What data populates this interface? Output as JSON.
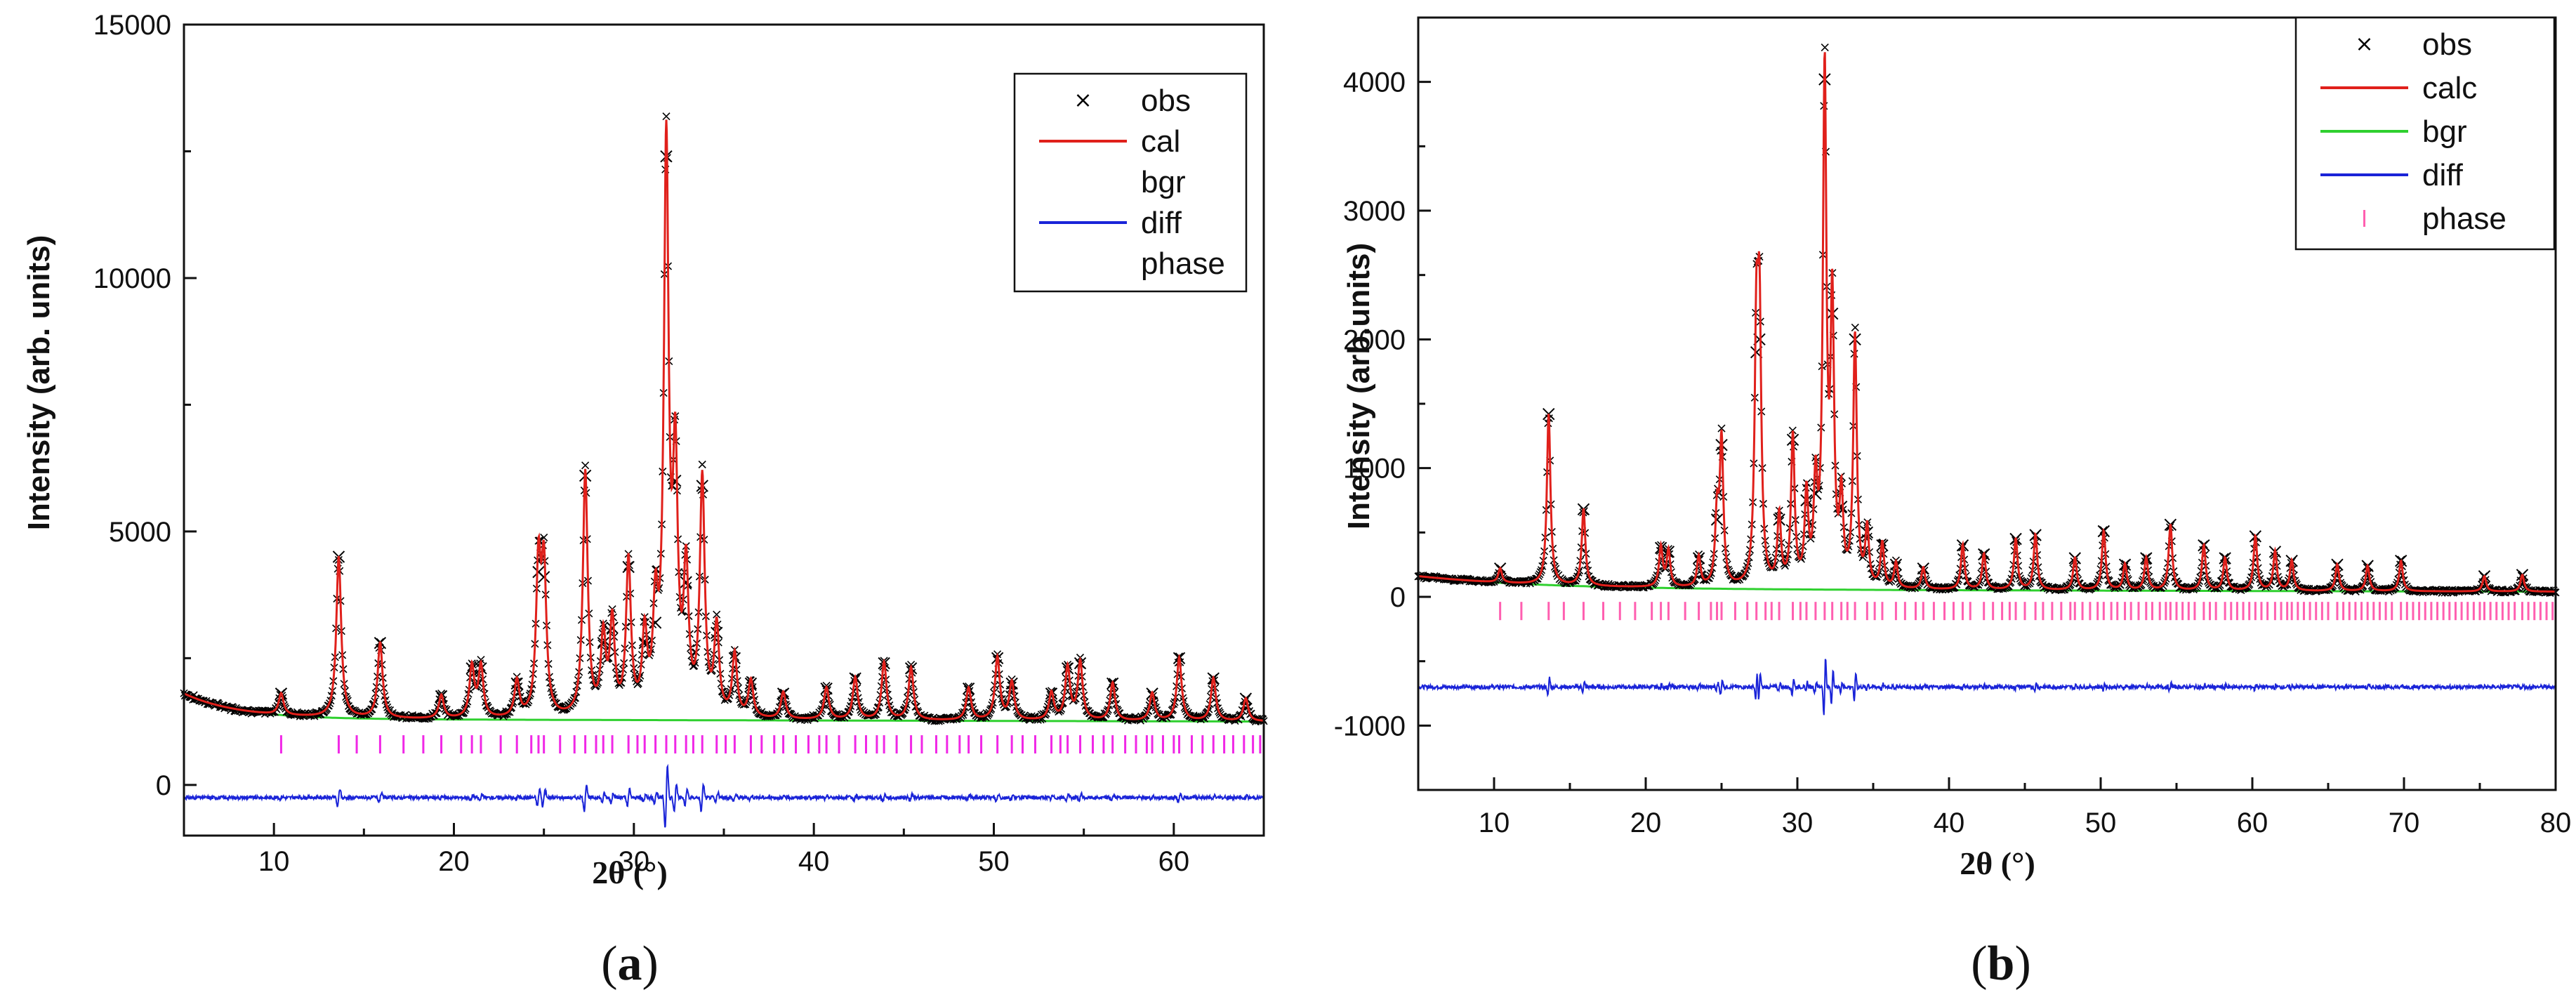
{
  "colors": {
    "obs": "#000000",
    "calc": "#e0201b",
    "bgr": "#2fd02f",
    "diff": "#1a24d8",
    "phase": "#f028e6",
    "phase_b": "#ff5fb0"
  },
  "chart_data": [
    {
      "type": "line",
      "panel_label": "a",
      "xlabel": "2θ (°)",
      "ylabel": "Intensity (arb. units)",
      "xlim": [
        5,
        65
      ],
      "ylim": [
        -1000,
        15000
      ],
      "xticks": [
        10,
        20,
        30,
        40,
        50,
        60
      ],
      "yticks": [
        0,
        5000,
        10000,
        15000
      ],
      "background": {
        "start": 1800,
        "end": 1250,
        "decay": 3.0,
        "floor": 1300
      },
      "peaks": [
        {
          "x": 10.4,
          "y": 1800
        },
        {
          "x": 13.6,
          "y": 4500
        },
        {
          "x": 15.9,
          "y": 2800
        },
        {
          "x": 19.3,
          "y": 1750
        },
        {
          "x": 21.0,
          "y": 2300
        },
        {
          "x": 21.5,
          "y": 2300
        },
        {
          "x": 23.5,
          "y": 2000
        },
        {
          "x": 24.7,
          "y": 4200
        },
        {
          "x": 25.0,
          "y": 4100
        },
        {
          "x": 27.3,
          "y": 6100
        },
        {
          "x": 28.3,
          "y": 2800
        },
        {
          "x": 28.8,
          "y": 3100
        },
        {
          "x": 29.7,
          "y": 4300
        },
        {
          "x": 30.6,
          "y": 2800
        },
        {
          "x": 31.2,
          "y": 3200
        },
        {
          "x": 31.8,
          "y": 12400
        },
        {
          "x": 32.3,
          "y": 6000
        },
        {
          "x": 32.9,
          "y": 4000
        },
        {
          "x": 33.8,
          "y": 5900
        },
        {
          "x": 34.6,
          "y": 3000
        },
        {
          "x": 35.6,
          "y": 2500
        },
        {
          "x": 36.5,
          "y": 2000
        },
        {
          "x": 38.3,
          "y": 1800
        },
        {
          "x": 40.7,
          "y": 1900
        },
        {
          "x": 42.3,
          "y": 2100
        },
        {
          "x": 43.9,
          "y": 2400
        },
        {
          "x": 45.4,
          "y": 2300
        },
        {
          "x": 48.6,
          "y": 1900
        },
        {
          "x": 50.2,
          "y": 2500
        },
        {
          "x": 51.0,
          "y": 2000
        },
        {
          "x": 53.2,
          "y": 1800
        },
        {
          "x": 54.1,
          "y": 2300
        },
        {
          "x": 54.8,
          "y": 2400
        },
        {
          "x": 56.6,
          "y": 2000
        },
        {
          "x": 58.8,
          "y": 1800
        },
        {
          "x": 60.3,
          "y": 2500
        },
        {
          "x": 62.2,
          "y": 2100
        },
        {
          "x": 64.0,
          "y": 1700
        }
      ],
      "peak_width": 0.16,
      "phase_y": 800,
      "phase_marks": [
        10.4,
        13.6,
        14.6,
        15.9,
        17.2,
        18.3,
        19.3,
        20.4,
        21.0,
        21.5,
        22.6,
        23.5,
        24.3,
        24.7,
        25.0,
        25.9,
        26.7,
        27.3,
        27.9,
        28.3,
        28.8,
        29.7,
        30.2,
        30.6,
        31.2,
        31.8,
        32.3,
        32.9,
        33.3,
        33.8,
        34.6,
        35.1,
        35.6,
        36.5,
        37.1,
        37.8,
        38.3,
        39.0,
        39.7,
        40.3,
        40.7,
        41.4,
        42.3,
        42.9,
        43.5,
        43.9,
        44.6,
        45.4,
        46.0,
        46.8,
        47.4,
        48.1,
        48.6,
        49.3,
        50.2,
        51.0,
        51.6,
        52.3,
        53.2,
        53.7,
        54.1,
        54.8,
        55.5,
        56.1,
        56.6,
        57.3,
        57.9,
        58.5,
        58.8,
        59.4,
        60.0,
        60.3,
        61.0,
        61.6,
        62.2,
        62.8,
        63.3,
        63.9,
        64.4,
        64.8
      ],
      "diff_offset": -250,
      "legend": {
        "position": "top-right",
        "entries": [
          {
            "label": "obs",
            "key": "obs",
            "style": "marker"
          },
          {
            "label": "cal",
            "key": "calc",
            "style": "line"
          },
          {
            "label": "bgr",
            "key": "bgr",
            "style": "none"
          },
          {
            "label": "diff",
            "key": "diff",
            "style": "line"
          },
          {
            "label": "phase",
            "key": "phase",
            "style": "none"
          }
        ]
      }
    },
    {
      "type": "line",
      "panel_label": "b",
      "xlabel": "2θ (°)",
      "ylabel": "Intensity (arb.units)",
      "xlim": [
        5,
        80
      ],
      "ylim": [
        -1500,
        4500
      ],
      "xticks": [
        10,
        20,
        30,
        40,
        50,
        60,
        70,
        80
      ],
      "yticks": [
        -1000,
        0,
        1000,
        2000,
        3000,
        4000
      ],
      "background": {
        "start": 160,
        "end": 40,
        "decay": 8.0,
        "floor": 60
      },
      "peaks": [
        {
          "x": 10.4,
          "y": 220
        },
        {
          "x": 13.6,
          "y": 1420
        },
        {
          "x": 15.9,
          "y": 680
        },
        {
          "x": 21.0,
          "y": 380
        },
        {
          "x": 21.5,
          "y": 350
        },
        {
          "x": 23.5,
          "y": 300
        },
        {
          "x": 24.7,
          "y": 600
        },
        {
          "x": 25.0,
          "y": 1180
        },
        {
          "x": 27.3,
          "y": 1900
        },
        {
          "x": 27.5,
          "y": 2000
        },
        {
          "x": 28.8,
          "y": 600
        },
        {
          "x": 29.7,
          "y": 1220
        },
        {
          "x": 30.6,
          "y": 750
        },
        {
          "x": 31.2,
          "y": 800
        },
        {
          "x": 31.8,
          "y": 4020
        },
        {
          "x": 32.3,
          "y": 2200
        },
        {
          "x": 32.9,
          "y": 700
        },
        {
          "x": 33.8,
          "y": 2000
        },
        {
          "x": 34.6,
          "y": 500
        },
        {
          "x": 35.6,
          "y": 400
        },
        {
          "x": 36.5,
          "y": 250
        },
        {
          "x": 38.3,
          "y": 220
        },
        {
          "x": 40.9,
          "y": 400
        },
        {
          "x": 42.3,
          "y": 330
        },
        {
          "x": 44.4,
          "y": 450
        },
        {
          "x": 45.7,
          "y": 480
        },
        {
          "x": 48.3,
          "y": 300
        },
        {
          "x": 50.2,
          "y": 510
        },
        {
          "x": 51.6,
          "y": 250
        },
        {
          "x": 53.0,
          "y": 300
        },
        {
          "x": 54.6,
          "y": 560
        },
        {
          "x": 56.8,
          "y": 400
        },
        {
          "x": 58.2,
          "y": 300
        },
        {
          "x": 60.2,
          "y": 470
        },
        {
          "x": 61.5,
          "y": 350
        },
        {
          "x": 62.6,
          "y": 280
        },
        {
          "x": 65.6,
          "y": 250
        },
        {
          "x": 67.6,
          "y": 240
        },
        {
          "x": 69.8,
          "y": 280
        },
        {
          "x": 75.3,
          "y": 160
        },
        {
          "x": 77.8,
          "y": 170
        }
      ],
      "peak_width": 0.14,
      "phase_y": -110,
      "phase_marks": [
        10.4,
        11.8,
        13.6,
        14.6,
        15.9,
        17.2,
        18.3,
        19.3,
        20.4,
        21.0,
        21.5,
        22.6,
        23.5,
        24.3,
        24.7,
        25.0,
        25.9,
        26.7,
        27.3,
        27.9,
        28.3,
        28.8,
        29.7,
        30.2,
        30.6,
        31.2,
        31.8,
        32.3,
        32.9,
        33.3,
        33.8,
        34.6,
        35.1,
        35.6,
        36.5,
        37.1,
        37.8,
        38.3,
        39.0,
        39.7,
        40.3,
        40.9,
        41.4,
        42.3,
        42.9,
        43.5,
        44.0,
        44.4,
        45.0,
        45.7,
        46.2,
        46.8,
        47.4,
        48.0,
        48.3,
        48.8,
        49.3,
        49.8,
        50.2,
        50.7,
        51.1,
        51.6,
        52.0,
        52.5,
        53.0,
        53.4,
        53.9,
        54.3,
        54.6,
        55.0,
        55.4,
        55.8,
        56.2,
        56.8,
        57.2,
        57.6,
        58.2,
        58.6,
        59.0,
        59.4,
        59.8,
        60.2,
        60.6,
        61.0,
        61.5,
        61.9,
        62.3,
        62.6,
        63.0,
        63.4,
        63.8,
        64.2,
        64.6,
        65.0,
        65.6,
        66.0,
        66.4,
        66.8,
        67.2,
        67.6,
        68.0,
        68.4,
        68.8,
        69.2,
        69.8,
        70.2,
        70.6,
        71.0,
        71.4,
        71.8,
        72.2,
        72.6,
        73.0,
        73.4,
        73.8,
        74.2,
        74.6,
        75.0,
        75.3,
        75.7,
        76.1,
        76.5,
        76.9,
        77.3,
        77.8,
        78.2,
        78.6,
        79.0,
        79.4,
        79.8
      ],
      "diff_offset": -700,
      "legend": {
        "position": "top-right",
        "entries": [
          {
            "label": "obs",
            "key": "obs",
            "style": "marker"
          },
          {
            "label": "calc",
            "key": "calc",
            "style": "line"
          },
          {
            "label": "bgr",
            "key": "bgr",
            "style": "line"
          },
          {
            "label": "diff",
            "key": "diff",
            "style": "line"
          },
          {
            "label": "phase",
            "key": "phase_b",
            "style": "tick"
          }
        ]
      }
    }
  ]
}
